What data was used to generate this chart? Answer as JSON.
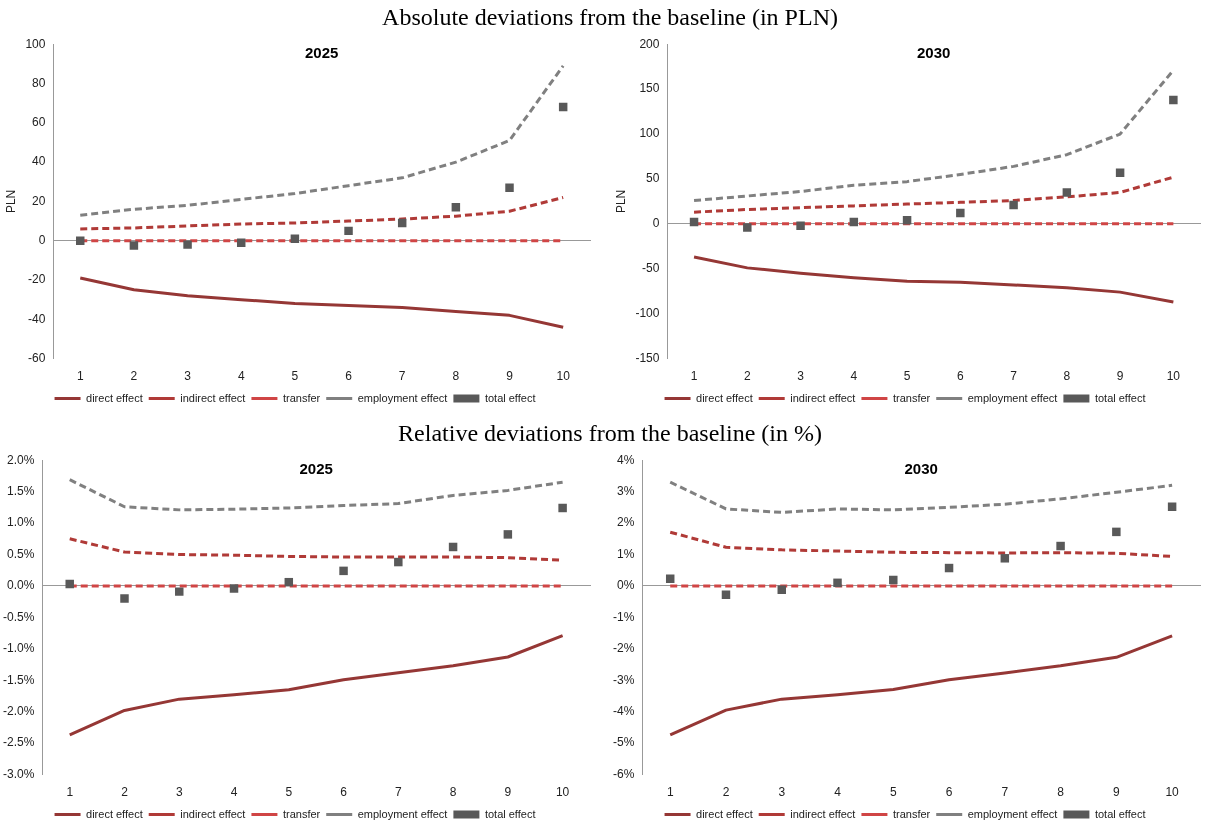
{
  "chart_data": [
    {
      "type": "line",
      "subtitle": "Absolute deviations from the baseline (in PLN)",
      "title": "2025",
      "ylabel": "PLN",
      "categories": [
        "1",
        "2",
        "3",
        "4",
        "5",
        "6",
        "7",
        "8",
        "9",
        "10"
      ],
      "ylim": [
        -60,
        100
      ],
      "yticks": [
        -60,
        -40,
        -20,
        0,
        20,
        40,
        60,
        80,
        100
      ],
      "legend": "bottom",
      "series": [
        {
          "name": "direct effect",
          "color": "#953735",
          "line_style": "solid",
          "marker": "none",
          "values": [
            -19,
            -25,
            -28,
            -30,
            -32,
            -33,
            -34,
            -36,
            -38,
            -44
          ]
        },
        {
          "name": "indirect effect",
          "color": "#b03a37",
          "line_style": "dashed",
          "marker": "none",
          "values": [
            6,
            6.5,
            7.5,
            8.5,
            9,
            10,
            11,
            12.5,
            15,
            22
          ]
        },
        {
          "name": "transfer",
          "color": "#d04545",
          "line_style": "dashed",
          "marker": "none",
          "values": [
            0,
            0,
            0,
            0,
            0,
            0,
            0,
            0,
            0,
            0
          ]
        },
        {
          "name": "employment effect",
          "color": "#808080",
          "line_style": "dashed",
          "marker": "none",
          "values": [
            13,
            16,
            18,
            21,
            24,
            28,
            32,
            40,
            51,
            89
          ]
        },
        {
          "name": "total effect",
          "type": "scatter",
          "color": "#595959",
          "marker": "square",
          "values": [
            0,
            -2.5,
            -2,
            -1,
            1,
            5,
            9,
            17,
            27,
            68
          ]
        }
      ]
    },
    {
      "type": "line",
      "title": "2030",
      "ylabel": "PLN",
      "categories": [
        "1",
        "2",
        "3",
        "4",
        "5",
        "6",
        "7",
        "8",
        "9",
        "10"
      ],
      "ylim": [
        -150,
        200
      ],
      "yticks": [
        -150,
        -100,
        -50,
        0,
        50,
        100,
        150,
        200
      ],
      "legend": "bottom",
      "series": [
        {
          "name": "direct effect",
          "color": "#953735",
          "line_style": "solid",
          "marker": "none",
          "values": [
            -37,
            -49,
            -55,
            -60,
            -64,
            -65,
            -68,
            -71,
            -76,
            -87
          ]
        },
        {
          "name": "indirect effect",
          "color": "#b03a37",
          "line_style": "dashed",
          "marker": "none",
          "values": [
            13,
            16,
            18,
            20,
            22,
            24,
            26,
            30,
            35,
            52
          ]
        },
        {
          "name": "transfer",
          "color": "#d04545",
          "line_style": "dashed",
          "marker": "none",
          "values": [
            0,
            0,
            0,
            0,
            0,
            0,
            0,
            0,
            0,
            0
          ]
        },
        {
          "name": "employment effect",
          "color": "#808080",
          "line_style": "dashed",
          "marker": "none",
          "values": [
            26,
            31,
            36,
            43,
            47,
            55,
            64,
            77,
            100,
            171
          ]
        },
        {
          "name": "total effect",
          "type": "scatter",
          "color": "#595959",
          "marker": "square",
          "values": [
            2,
            -4,
            -2,
            2,
            4,
            12,
            21,
            35,
            57,
            138
          ]
        }
      ]
    },
    {
      "type": "line",
      "subtitle": "Relative deviations from the baseline (in %)",
      "title": "2025",
      "categories": [
        "1",
        "2",
        "3",
        "4",
        "5",
        "6",
        "7",
        "8",
        "9",
        "10"
      ],
      "ylim": [
        -3,
        2
      ],
      "yticks": [
        {
          "value": -3,
          "label": "-3.0%"
        },
        {
          "value": -2.5,
          "label": "-2.5%"
        },
        {
          "value": -2,
          "label": "-2.0%"
        },
        {
          "value": -1.5,
          "label": "-1.5%"
        },
        {
          "value": -1,
          "label": "-1.0%"
        },
        {
          "value": -0.5,
          "label": "-0.5%"
        },
        {
          "value": 0,
          "label": "0.0%"
        },
        {
          "value": 0.5,
          "label": "0.5%"
        },
        {
          "value": 1,
          "label": "1.0%"
        },
        {
          "value": 1.5,
          "label": "1.5%"
        },
        {
          "value": 2,
          "label": "2.0%"
        }
      ],
      "legend": "bottom",
      "series": [
        {
          "name": "direct effect",
          "color": "#953735",
          "line_style": "solid",
          "marker": "none",
          "values": [
            -2.37,
            -1.98,
            -1.8,
            -1.73,
            -1.65,
            -1.49,
            -1.38,
            -1.27,
            -1.13,
            -0.79
          ]
        },
        {
          "name": "indirect effect",
          "color": "#b03a37",
          "line_style": "dashed",
          "marker": "none",
          "values": [
            0.75,
            0.54,
            0.5,
            0.49,
            0.47,
            0.46,
            0.46,
            0.46,
            0.45,
            0.41
          ]
        },
        {
          "name": "transfer",
          "color": "#d04545",
          "line_style": "dashed",
          "marker": "none",
          "values": [
            0,
            0,
            0,
            0,
            0,
            0,
            0,
            0,
            0,
            0
          ]
        },
        {
          "name": "employment effect",
          "color": "#808080",
          "line_style": "dashed",
          "marker": "none",
          "values": [
            1.69,
            1.26,
            1.21,
            1.22,
            1.24,
            1.28,
            1.31,
            1.44,
            1.52,
            1.65
          ]
        },
        {
          "name": "total effect",
          "type": "scatter",
          "color": "#595959",
          "marker": "square",
          "values": [
            0.03,
            -0.2,
            -0.09,
            -0.04,
            0.06,
            0.24,
            0.38,
            0.62,
            0.82,
            1.24
          ]
        }
      ]
    },
    {
      "type": "line",
      "title": "2030",
      "categories": [
        "1",
        "2",
        "3",
        "4",
        "5",
        "6",
        "7",
        "8",
        "9",
        "10"
      ],
      "ylim": [
        -6,
        4
      ],
      "yticks": [
        {
          "value": -6,
          "label": "-6%"
        },
        {
          "value": -5,
          "label": "-5%"
        },
        {
          "value": -4,
          "label": "-4%"
        },
        {
          "value": -3,
          "label": "-3%"
        },
        {
          "value": -2,
          "label": "-2%"
        },
        {
          "value": -1,
          "label": "-1%"
        },
        {
          "value": 0,
          "label": "0%"
        },
        {
          "value": 1,
          "label": "1%"
        },
        {
          "value": 2,
          "label": "2%"
        },
        {
          "value": 3,
          "label": "3%"
        },
        {
          "value": 4,
          "label": "4%"
        }
      ],
      "legend": "bottom",
      "series": [
        {
          "name": "direct effect",
          "color": "#953735",
          "line_style": "solid",
          "marker": "none",
          "values": [
            -4.74,
            -3.95,
            -3.6,
            -3.46,
            -3.29,
            -2.98,
            -2.77,
            -2.54,
            -2.27,
            -1.59
          ]
        },
        {
          "name": "indirect effect",
          "color": "#b03a37",
          "line_style": "dashed",
          "marker": "none",
          "values": [
            1.71,
            1.23,
            1.15,
            1.11,
            1.07,
            1.06,
            1.05,
            1.06,
            1.04,
            0.94
          ]
        },
        {
          "name": "transfer",
          "color": "#d04545",
          "line_style": "dashed",
          "marker": "none",
          "values": [
            0,
            0,
            0,
            0,
            0,
            0,
            0,
            0,
            0,
            0
          ]
        },
        {
          "name": "employment effect",
          "color": "#808080",
          "line_style": "dashed",
          "marker": "none",
          "values": [
            3.3,
            2.45,
            2.34,
            2.45,
            2.42,
            2.5,
            2.6,
            2.77,
            2.98,
            3.2
          ]
        },
        {
          "name": "total effect",
          "type": "scatter",
          "color": "#595959",
          "marker": "square",
          "values": [
            0.23,
            -0.28,
            -0.12,
            0.1,
            0.19,
            0.57,
            0.88,
            1.27,
            1.72,
            2.52
          ]
        }
      ]
    }
  ]
}
